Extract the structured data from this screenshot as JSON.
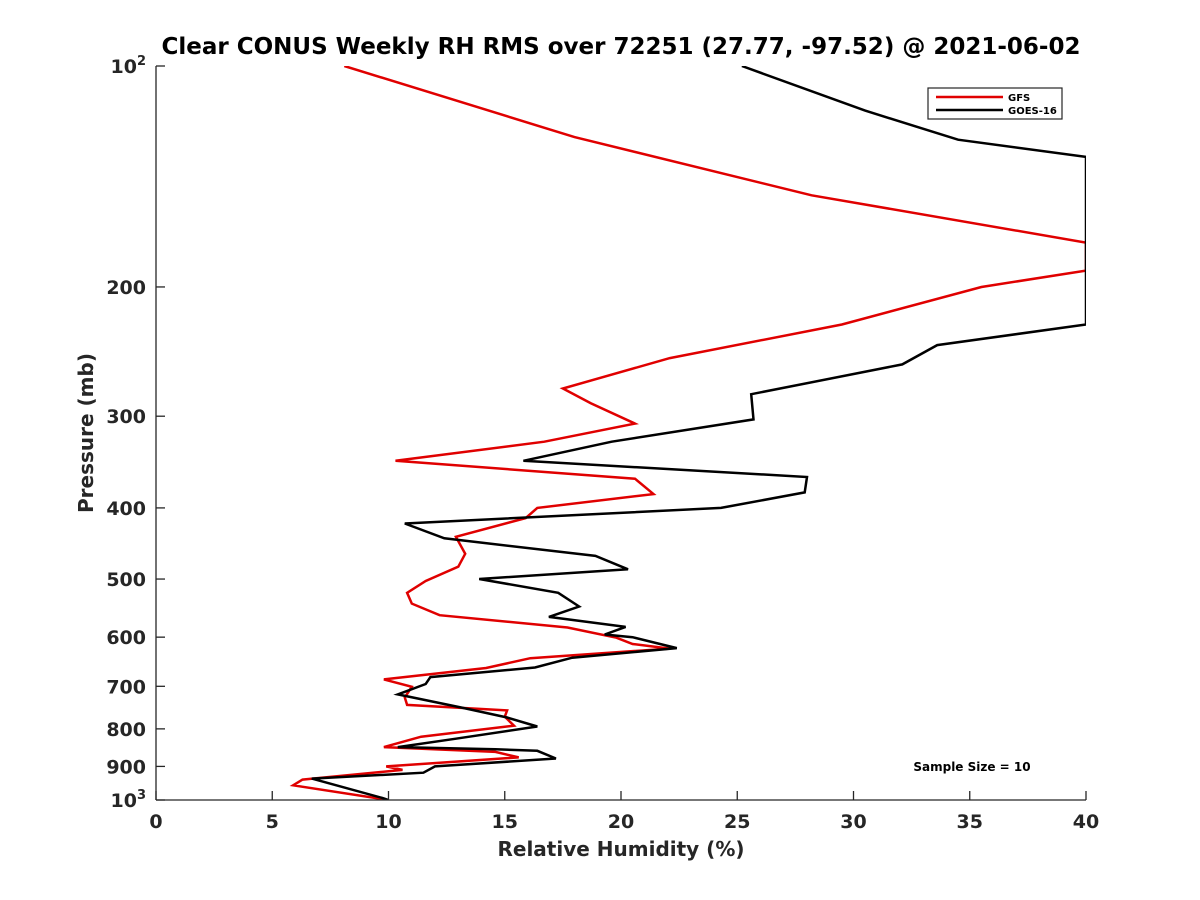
{
  "chart_data": {
    "type": "line",
    "title": "Clear CONUS Weekly RH RMS over 72251 (27.77, -97.52) @ 2021-06-02",
    "xlabel": "Relative Humidity (%)",
    "ylabel": "Pressure (mb)",
    "xlim": [
      0,
      40
    ],
    "ylim": [
      100,
      1000
    ],
    "y_scale": "log",
    "y_reversed": true,
    "grid": false,
    "legend_position": "top-right",
    "annotation": "Sample Size = 10",
    "x_ticks": [
      {
        "value": 0,
        "label": "0"
      },
      {
        "value": 5,
        "label": "5"
      },
      {
        "value": 10,
        "label": "10"
      },
      {
        "value": 15,
        "label": "15"
      },
      {
        "value": 20,
        "label": "20"
      },
      {
        "value": 25,
        "label": "25"
      },
      {
        "value": 30,
        "label": "30"
      },
      {
        "value": 35,
        "label": "35"
      },
      {
        "value": 40,
        "label": "40"
      }
    ],
    "y_ticks": [
      {
        "value": 100,
        "label": "10",
        "sup": "2"
      },
      {
        "value": 200,
        "label": "200"
      },
      {
        "value": 300,
        "label": "300"
      },
      {
        "value": 400,
        "label": "400"
      },
      {
        "value": 500,
        "label": "500"
      },
      {
        "value": 600,
        "label": "600"
      },
      {
        "value": 700,
        "label": "700"
      },
      {
        "value": 800,
        "label": "800"
      },
      {
        "value": 900,
        "label": "900"
      },
      {
        "value": 1000,
        "label": "10",
        "sup": "3"
      }
    ],
    "series": [
      {
        "name": "GFS",
        "color": "#e00000",
        "points": [
          [
            8.1,
            100
          ],
          [
            18.0,
            125
          ],
          [
            28.2,
            150
          ],
          [
            40.0,
            174
          ],
          [
            40.0,
            175
          ],
          [
            40.0,
            190
          ],
          [
            35.5,
            200
          ],
          [
            29.5,
            225
          ],
          [
            22.1,
            250
          ],
          [
            17.5,
            275
          ],
          [
            18.7,
            288
          ],
          [
            20.6,
            307
          ],
          [
            16.7,
            325
          ],
          [
            10.3,
            345
          ],
          [
            20.6,
            365
          ],
          [
            21.4,
            383
          ],
          [
            16.4,
            400
          ],
          [
            15.9,
            413
          ],
          [
            12.9,
            438
          ],
          [
            13.3,
            462
          ],
          [
            13.0,
            481
          ],
          [
            11.6,
            503
          ],
          [
            10.8,
            522
          ],
          [
            11.0,
            540
          ],
          [
            12.2,
            560
          ],
          [
            17.7,
            582
          ],
          [
            19.8,
            601
          ],
          [
            20.5,
            613
          ],
          [
            22.1,
            622
          ],
          [
            16.1,
            641
          ],
          [
            14.2,
            661
          ],
          [
            9.8,
            685
          ],
          [
            11.0,
            701
          ],
          [
            10.7,
            725
          ],
          [
            10.8,
            742
          ],
          [
            15.1,
            755
          ],
          [
            15.0,
            770
          ],
          [
            15.4,
            792
          ],
          [
            11.4,
            820
          ],
          [
            9.8,
            847
          ],
          [
            14.6,
            860
          ],
          [
            15.6,
            875
          ],
          [
            9.9,
            900
          ],
          [
            10.6,
            910
          ],
          [
            6.3,
            938
          ],
          [
            5.9,
            955
          ],
          [
            10.0,
            1000
          ]
        ]
      },
      {
        "name": "GOES-16",
        "color": "#000000",
        "points": [
          [
            25.2,
            100
          ],
          [
            30.5,
            115
          ],
          [
            34.5,
            126
          ],
          [
            40.0,
            133
          ],
          [
            40.0,
            225
          ],
          [
            33.6,
            240
          ],
          [
            32.1,
            255
          ],
          [
            25.6,
            280
          ],
          [
            25.7,
            303
          ],
          [
            19.6,
            325
          ],
          [
            15.8,
            345
          ],
          [
            28.0,
            363
          ],
          [
            27.9,
            381
          ],
          [
            24.3,
            400
          ],
          [
            10.7,
            420
          ],
          [
            12.4,
            440
          ],
          [
            18.9,
            465
          ],
          [
            20.3,
            485
          ],
          [
            13.9,
            500
          ],
          [
            17.3,
            522
          ],
          [
            18.2,
            545
          ],
          [
            16.9,
            563
          ],
          [
            20.2,
            581
          ],
          [
            19.3,
            595
          ],
          [
            20.5,
            600
          ],
          [
            22.4,
            621
          ],
          [
            17.9,
            640
          ],
          [
            16.3,
            660
          ],
          [
            11.8,
            680
          ],
          [
            11.6,
            695
          ],
          [
            10.4,
            718
          ],
          [
            13.1,
            748
          ],
          [
            15.1,
            772
          ],
          [
            16.4,
            794
          ],
          [
            12.9,
            825
          ],
          [
            10.4,
            847
          ],
          [
            14.6,
            853
          ],
          [
            16.4,
            857
          ],
          [
            17.2,
            878
          ],
          [
            12.0,
            900
          ],
          [
            11.5,
            918
          ],
          [
            6.7,
            935
          ],
          [
            9.8,
            995
          ],
          [
            10.0,
            1000
          ]
        ]
      }
    ]
  }
}
